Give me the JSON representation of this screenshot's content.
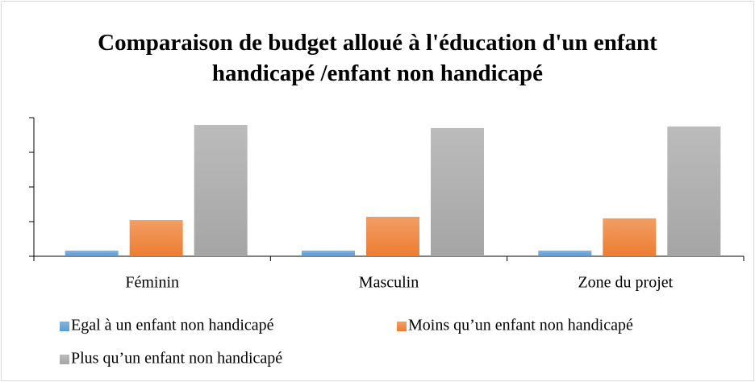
{
  "chart_data": {
    "type": "bar",
    "title": "Comparaison de budget alloué à l'éducation d'un enfant handicapé /enfant non handicapé",
    "categories": [
      "Féminin",
      "Masculin",
      "Zone du projet"
    ],
    "series": [
      {
        "name": "Egal à un enfant non handicapé",
        "color": "#5b9bd5",
        "values": [
          3.3,
          3.3,
          3.3
        ]
      },
      {
        "name": "Moins qu’un enfant non handicapé",
        "color": "#ed7d31",
        "values": [
          20.9,
          22.8,
          21.9
        ]
      },
      {
        "name": "Plus qu’un enfant non handicapé",
        "color": "#a5a5a5",
        "values": [
          75.8,
          74.0,
          74.9
        ]
      }
    ],
    "ylim": [
      0,
      80
    ],
    "yticks": [
      0,
      20,
      40,
      60,
      80
    ],
    "grid": false,
    "legend": "bottom"
  }
}
